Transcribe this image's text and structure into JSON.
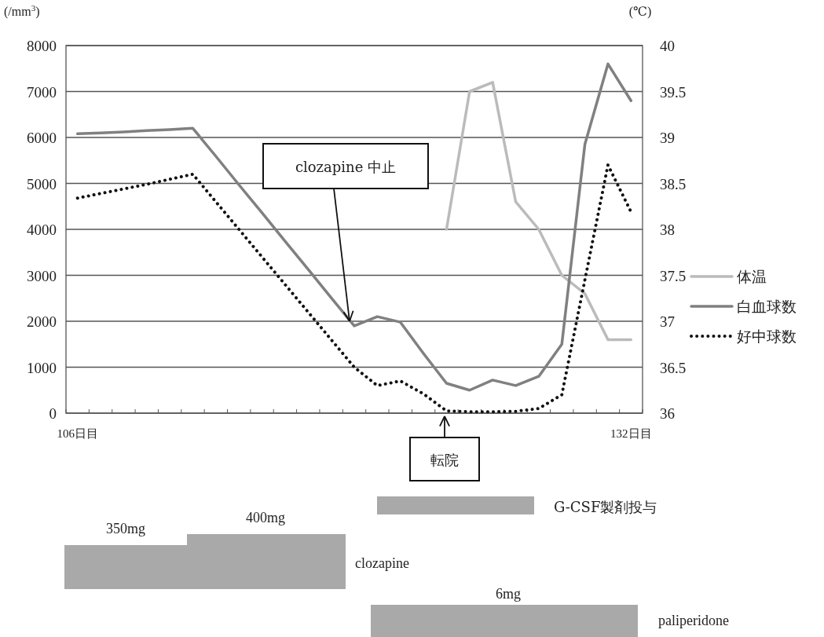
{
  "chart_data": {
    "type": "line",
    "ylabel": "(/mm$^{3}$)",
    "y2label": "(℃)",
    "categories": [
      "106日目",
      null,
      null,
      null,
      null,
      null,
      null,
      null,
      null,
      null,
      null,
      null,
      null,
      null,
      null,
      null,
      null,
      null,
      null,
      null,
      null,
      null,
      null,
      null,
      "132日目"
    ],
    "series": [
      {
        "name": "体温",
        "color": "#bbbbbb",
        "axis": "y2",
        "line_style": "solid",
        "values": [
          null,
          null,
          null,
          null,
          null,
          null,
          null,
          null,
          null,
          null,
          null,
          null,
          null,
          null,
          null,
          null,
          38.0,
          39.5,
          39.6,
          38.3,
          38.0,
          37.5,
          37.3,
          36.8,
          36.8
        ]
      },
      {
        "name": "白血球数",
        "color": "#808080",
        "line_style": "solid",
        "values": [
          6080,
          6100,
          6120,
          6150,
          6170,
          6200,
          5590,
          4970,
          4360,
          3740,
          3130,
          2510,
          1900,
          2100,
          1980,
          1300,
          650,
          500,
          720,
          600,
          800,
          1500,
          5850,
          7600,
          6800
        ]
      },
      {
        "name": "好中球数",
        "color": "#111111",
        "line_style": "dotted",
        "values": [
          4680,
          4780,
          4880,
          4980,
          5090,
          5200,
          4600,
          4000,
          3400,
          2800,
          2200,
          1600,
          1000,
          600,
          700,
          420,
          50,
          30,
          30,
          40,
          100,
          400,
          2900,
          5400,
          4380
        ]
      }
    ],
    "ylim": [
      0,
      8000
    ],
    "yticks": [
      0,
      1000,
      2000,
      3000,
      4000,
      5000,
      6000,
      7000,
      8000
    ],
    "y2lim": [
      36,
      40
    ],
    "y2ticks": [
      36,
      36.5,
      37,
      37.5,
      38,
      38.5,
      39,
      39.5,
      40
    ],
    "grid": "y",
    "legend": "right",
    "annotations": [
      {
        "text": "clozapine 中止",
        "y": 2000
      },
      "転院",
      "G-CSF製剤投与",
      "350mg",
      "400mg",
      "clozapine",
      "6mg",
      "paliperidone"
    ]
  }
}
